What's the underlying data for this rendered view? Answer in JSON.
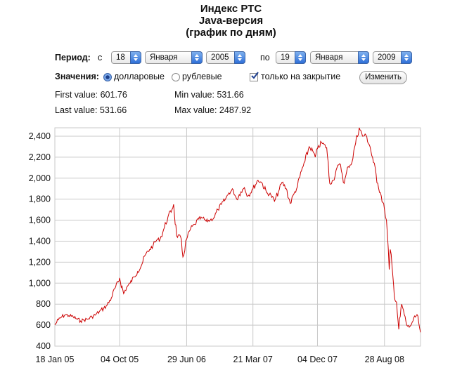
{
  "title": {
    "line1": "Индекс РТС",
    "line2": "Java-версия",
    "line3": "(график по дням)"
  },
  "period": {
    "label": "Период:",
    "from_prefix": "с",
    "from_day": "18",
    "from_month": "Января",
    "from_year": "2005",
    "to_prefix": "по",
    "to_day": "19",
    "to_month": "Января",
    "to_year": "2009"
  },
  "values": {
    "label": "Значения:",
    "option_usd": "долларовые",
    "option_rub": "рублевые",
    "selected": "долларовые",
    "close_only_label": "только на закрытие",
    "close_only_checked": true,
    "apply_button": "Изменить"
  },
  "stats": {
    "first_value": "First value: 601.76",
    "last_value": "Last value: 531.66",
    "min_value": "Min value: 531.66",
    "max_value": "Max value: 2487.92"
  },
  "colors": {
    "line": "#cc0000",
    "grid": "#c8c8c8",
    "accent": "#3a7be0"
  },
  "chart_data": {
    "type": "line",
    "title": "",
    "xlabel": "",
    "ylabel": "",
    "ylim": [
      400,
      2480
    ],
    "xlim": [
      "18 Jan 05",
      "19 Jan 09"
    ],
    "grid": true,
    "y_ticks": [
      "400",
      "600",
      "800",
      "1,000",
      "1,200",
      "1,400",
      "1,600",
      "1,800",
      "2,000",
      "2,200",
      "2,400"
    ],
    "x_ticks": [
      "18 Jan 05",
      "04 Oct 05",
      "29 Jun 06",
      "21 Mar 07",
      "04 Dec 07",
      "28 Aug 08"
    ],
    "series": [
      {
        "values": [
          [
            "2005-01-18",
            602
          ],
          [
            "2005-02-01",
            650
          ],
          [
            "2005-02-15",
            680
          ],
          [
            "2005-03-01",
            700
          ],
          [
            "2005-03-15",
            690
          ],
          [
            "2005-04-01",
            680
          ],
          [
            "2005-04-15",
            660
          ],
          [
            "2005-05-01",
            640
          ],
          [
            "2005-05-15",
            650
          ],
          [
            "2005-06-01",
            660
          ],
          [
            "2005-06-15",
            680
          ],
          [
            "2005-07-01",
            700
          ],
          [
            "2005-07-15",
            730
          ],
          [
            "2005-08-01",
            760
          ],
          [
            "2005-08-15",
            790
          ],
          [
            "2005-09-01",
            860
          ],
          [
            "2005-09-15",
            950
          ],
          [
            "2005-10-01",
            1020
          ],
          [
            "2005-10-04",
            1050
          ],
          [
            "2005-10-20",
            900
          ],
          [
            "2005-11-01",
            960
          ],
          [
            "2005-11-15",
            1000
          ],
          [
            "2005-12-01",
            1060
          ],
          [
            "2005-12-15",
            1110
          ],
          [
            "2006-01-01",
            1180
          ],
          [
            "2006-01-15",
            1270
          ],
          [
            "2006-02-01",
            1320
          ],
          [
            "2006-02-15",
            1360
          ],
          [
            "2006-03-01",
            1410
          ],
          [
            "2006-03-15",
            1420
          ],
          [
            "2006-04-01",
            1530
          ],
          [
            "2006-04-15",
            1630
          ],
          [
            "2006-05-01",
            1700
          ],
          [
            "2006-05-08",
            1750
          ],
          [
            "2006-05-20",
            1450
          ],
          [
            "2006-06-05",
            1440
          ],
          [
            "2006-06-14",
            1250
          ],
          [
            "2006-06-29",
            1420
          ],
          [
            "2006-07-15",
            1520
          ],
          [
            "2006-08-01",
            1560
          ],
          [
            "2006-08-15",
            1610
          ],
          [
            "2006-09-01",
            1620
          ],
          [
            "2006-09-15",
            1590
          ],
          [
            "2006-10-01",
            1600
          ],
          [
            "2006-10-15",
            1620
          ],
          [
            "2006-11-01",
            1700
          ],
          [
            "2006-11-15",
            1750
          ],
          [
            "2006-12-01",
            1800
          ],
          [
            "2006-12-15",
            1860
          ],
          [
            "2007-01-01",
            1890
          ],
          [
            "2007-01-15",
            1800
          ],
          [
            "2007-02-01",
            1870
          ],
          [
            "2007-02-15",
            1910
          ],
          [
            "2007-03-01",
            1830
          ],
          [
            "2007-03-21",
            1900
          ],
          [
            "2007-04-10",
            1980
          ],
          [
            "2007-04-25",
            1960
          ],
          [
            "2007-05-15",
            1860
          ],
          [
            "2007-06-01",
            1840
          ],
          [
            "2007-06-15",
            1780
          ],
          [
            "2007-07-01",
            1870
          ],
          [
            "2007-07-15",
            1960
          ],
          [
            "2007-08-01",
            1900
          ],
          [
            "2007-08-17",
            1760
          ],
          [
            "2007-09-01",
            1850
          ],
          [
            "2007-09-15",
            1920
          ],
          [
            "2007-10-01",
            2070
          ],
          [
            "2007-10-15",
            2160
          ],
          [
            "2007-11-01",
            2300
          ],
          [
            "2007-11-15",
            2260
          ],
          [
            "2007-11-25",
            2200
          ],
          [
            "2007-12-04",
            2280
          ],
          [
            "2007-12-20",
            2340
          ],
          [
            "2008-01-10",
            2290
          ],
          [
            "2008-01-22",
            1950
          ],
          [
            "2008-02-05",
            1980
          ],
          [
            "2008-02-20",
            2100
          ],
          [
            "2008-03-05",
            2130
          ],
          [
            "2008-03-20",
            1950
          ],
          [
            "2008-04-05",
            2110
          ],
          [
            "2008-04-20",
            2150
          ],
          [
            "2008-05-01",
            2300
          ],
          [
            "2008-05-19",
            2488
          ],
          [
            "2008-06-01",
            2400
          ],
          [
            "2008-06-15",
            2410
          ],
          [
            "2008-07-01",
            2300
          ],
          [
            "2008-07-15",
            2150
          ],
          [
            "2008-08-01",
            1950
          ],
          [
            "2008-08-15",
            1830
          ],
          [
            "2008-08-28",
            1700
          ],
          [
            "2008-09-05",
            1600
          ],
          [
            "2008-09-16",
            1130
          ],
          [
            "2008-09-20",
            1320
          ],
          [
            "2008-10-01",
            1050
          ],
          [
            "2008-10-06",
            880
          ],
          [
            "2008-10-15",
            820
          ],
          [
            "2008-10-24",
            560
          ],
          [
            "2008-11-05",
            800
          ],
          [
            "2008-11-15",
            700
          ],
          [
            "2008-11-25",
            600
          ],
          [
            "2008-12-05",
            580
          ],
          [
            "2008-12-20",
            640
          ],
          [
            "2009-01-05",
            700
          ],
          [
            "2009-01-12",
            620
          ],
          [
            "2009-01-19",
            532
          ]
        ]
      }
    ]
  }
}
